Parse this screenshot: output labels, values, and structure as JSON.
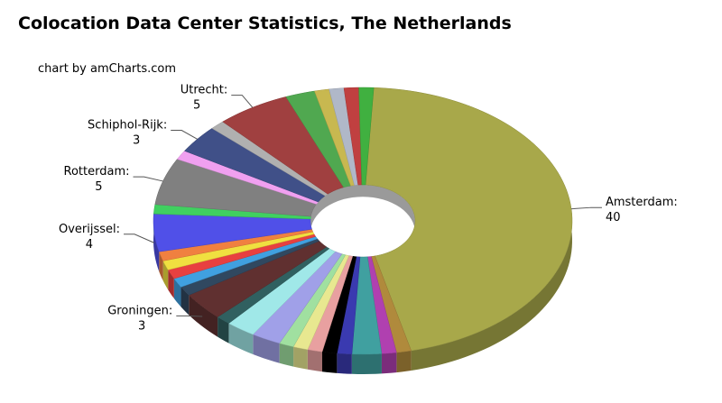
{
  "chart_data": {
    "type": "pie",
    "title": "Colocation Data Center Statistics, The Netherlands",
    "credit": "chart by amCharts.com",
    "categories": [
      "Amsterdam:",
      null,
      null,
      null,
      null,
      null,
      null,
      null,
      null,
      null,
      null,
      null,
      "Groningen:",
      null,
      null,
      null,
      null,
      null,
      "Overijssel:",
      null,
      "Rotterdam:",
      null,
      "Schiphol-Rijk:",
      null,
      "Utrecht:",
      null,
      null,
      null,
      null,
      null
    ],
    "values": [
      40,
      1,
      1,
      2,
      1,
      1,
      1,
      1,
      1,
      2,
      2,
      1,
      3,
      1,
      1,
      1,
      1,
      1,
      4,
      1,
      5,
      1,
      3,
      1,
      5,
      2,
      1,
      1,
      1,
      1
    ],
    "colors": [
      "#a8a84a",
      "#b08a3c",
      "#b040b0",
      "#40a0a0",
      "#3a3ab0",
      "#000000",
      "#e8a0a0",
      "#e8e890",
      "#a0e0a0",
      "#a0a0e8",
      "#a0e8e8",
      "#306060",
      "#603030",
      "#304860",
      "#40a0e0",
      "#e84040",
      "#f0e040",
      "#f08040",
      "#5050e8",
      "#40d060",
      "#808080",
      "#f0a0f0",
      "#405088",
      "#b0b0b0",
      "#a04040",
      "#50a850",
      "#c8b850",
      "#b0b8c8",
      "#c04040",
      "#40b040"
    ]
  }
}
